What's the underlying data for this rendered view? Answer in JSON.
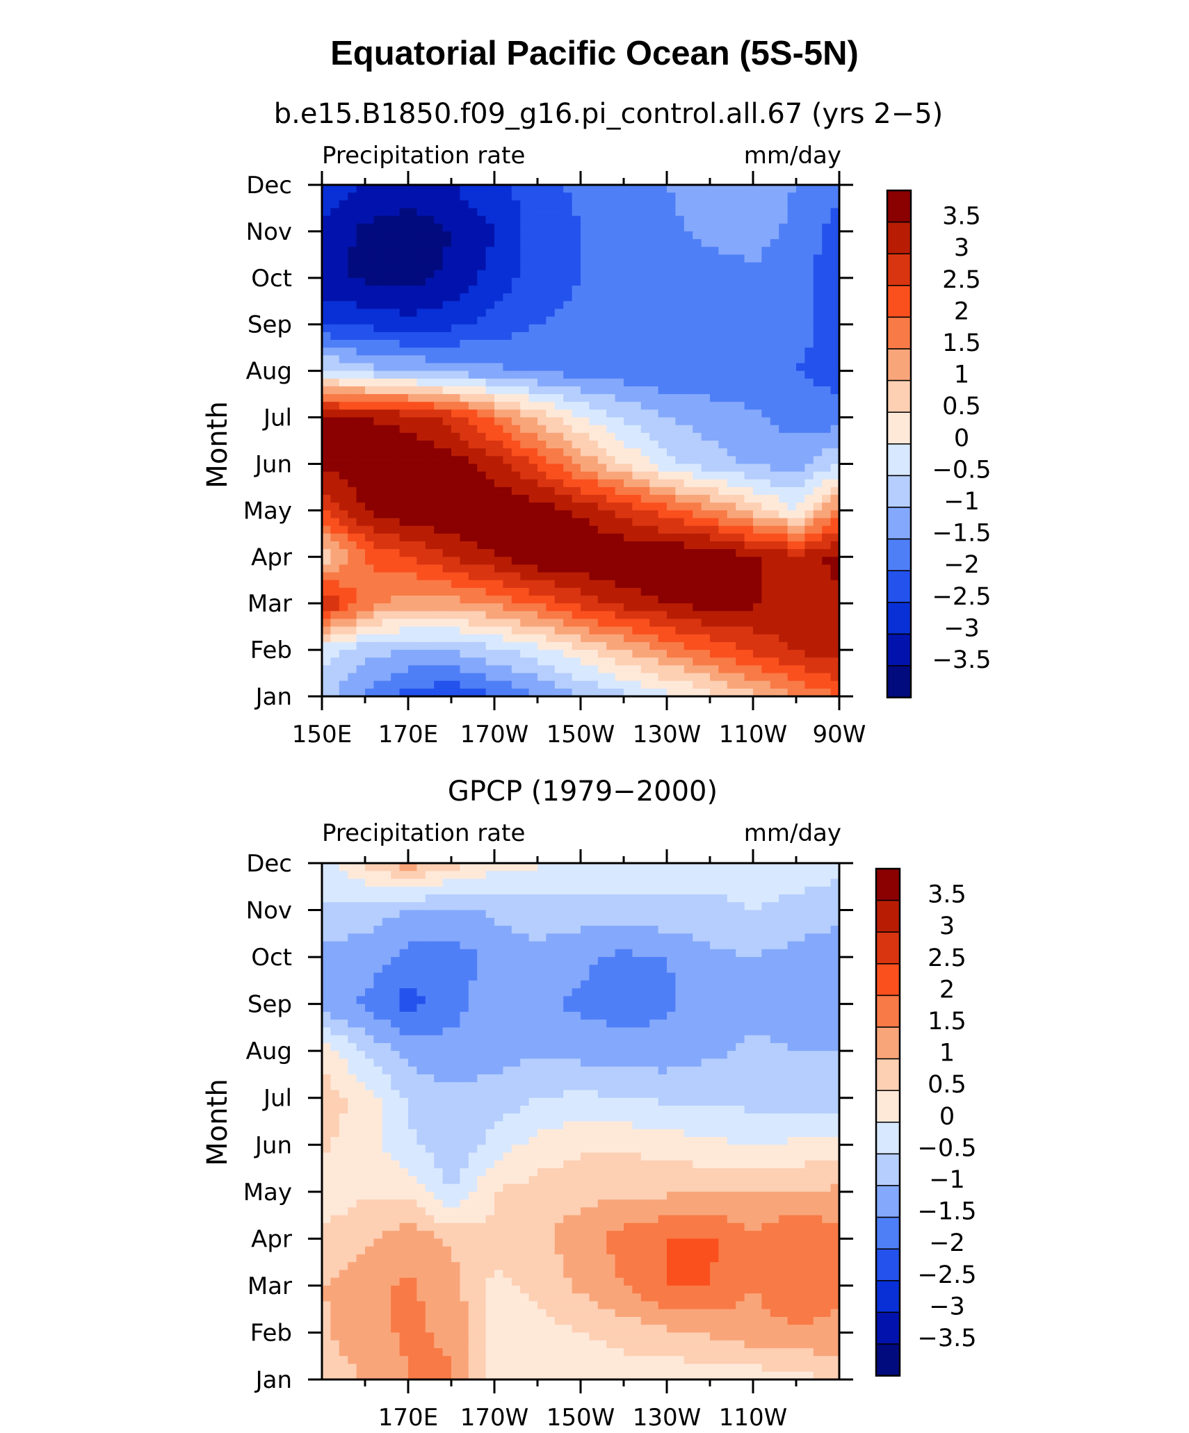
{
  "figure": {
    "title": "Equatorial Pacific Ocean (5S-5N)"
  },
  "colorbar": {
    "levels": [
      "3.5",
      "3",
      "2.5",
      "2",
      "1.5",
      "1",
      "0.5",
      "0",
      "−0.5",
      "−1",
      "−1.5",
      "−2",
      "−2.5",
      "−3",
      "−3.5"
    ],
    "colors": [
      "#8b0000",
      "#b81d04",
      "#d93510",
      "#fa501e",
      "#f87a46",
      "#f9a57a",
      "#fdcfb3",
      "#fee9d9",
      "#d8e8fe",
      "#b5cefd",
      "#84a8fb",
      "#4f7ff7",
      "#2352ec",
      "#0930d6",
      "#0213ad",
      "#020b7e"
    ]
  },
  "chart_data": [
    {
      "type": "heatmap",
      "subtitle": "b.e15.B1850.f09_g16.pi_control.all.67 (yrs 2−5)",
      "left_label": "Precipitation rate",
      "right_label": "mm/day",
      "ylabel": "Month",
      "x_ticks": [
        "150E",
        "170E",
        "170W",
        "150W",
        "130W",
        "110W",
        "90W"
      ],
      "x_range": [
        "150E",
        "90W"
      ],
      "y_ticks": [
        "Jan",
        "Feb",
        "Mar",
        "Apr",
        "May",
        "Jun",
        "Jul",
        "Aug",
        "Sep",
        "Oct",
        "Nov",
        "Dec"
      ],
      "units": "mm/day",
      "x_degrees": [
        150,
        160,
        170,
        180,
        190,
        200,
        210,
        220,
        230,
        240,
        250,
        260,
        270
      ],
      "values": [
        [
          -0.8,
          -1.6,
          -2.2,
          -2.4,
          -2.0,
          -1.5,
          -1.0,
          -0.6,
          -0.2,
          0.3,
          0.9,
          1.5,
          2.0
        ],
        [
          -0.3,
          -0.8,
          -1.0,
          -1.0,
          -0.6,
          -0.2,
          0.4,
          1.0,
          1.6,
          2.1,
          2.6,
          3.1,
          3.3
        ],
        [
          3.2,
          1.8,
          1.2,
          1.3,
          1.6,
          2.1,
          2.7,
          3.2,
          3.5,
          3.8,
          3.6,
          3.2,
          3.4
        ],
        [
          0.5,
          2.0,
          2.5,
          3.0,
          3.5,
          4.0,
          4.0,
          4.0,
          4.0,
          4.0,
          3.6,
          3.2,
          3.7
        ],
        [
          2.5,
          3.5,
          4.0,
          4.0,
          4.0,
          3.8,
          3.4,
          2.8,
          2.2,
          1.6,
          0.8,
          0.0,
          1.8
        ],
        [
          3.6,
          4.0,
          4.0,
          3.8,
          3.2,
          2.4,
          1.4,
          0.5,
          -0.3,
          -0.8,
          -1.1,
          -1.2,
          -0.5
        ],
        [
          3.5,
          3.5,
          3.3,
          2.8,
          1.8,
          0.8,
          0.0,
          -0.6,
          -1.0,
          -1.2,
          -1.4,
          -1.7,
          -1.8
        ],
        [
          -0.3,
          -0.8,
          -1.0,
          -1.2,
          -1.4,
          -1.6,
          -1.7,
          -1.8,
          -1.9,
          -1.9,
          -2.0,
          -2.0,
          -2.2
        ],
        [
          -2.5,
          -2.6,
          -2.8,
          -2.6,
          -2.3,
          -2.0,
          -1.9,
          -1.8,
          -1.8,
          -1.8,
          -1.7,
          -1.8,
          -2.3
        ],
        [
          -3.4,
          -3.6,
          -3.7,
          -3.4,
          -2.8,
          -2.2,
          -2.0,
          -1.9,
          -1.8,
          -1.7,
          -1.6,
          -1.8,
          -2.4
        ],
        [
          -3.2,
          -3.6,
          -3.8,
          -3.5,
          -3.0,
          -2.3,
          -2.0,
          -1.8,
          -1.6,
          -1.4,
          -1.3,
          -1.6,
          -2.2
        ],
        [
          -2.6,
          -3.0,
          -3.2,
          -3.0,
          -2.6,
          -2.2,
          -1.9,
          -1.7,
          -1.5,
          -1.3,
          -1.3,
          -1.5,
          -1.9
        ]
      ]
    },
    {
      "type": "heatmap",
      "subtitle": "GPCP (1979−2000)",
      "left_label": "Precipitation rate",
      "right_label": "mm/day",
      "ylabel": "Month",
      "x_ticks": [
        "170E",
        "170W",
        "150W",
        "130W",
        "110W"
      ],
      "x_range": [
        "150E",
        "90W"
      ],
      "y_ticks": [
        "Jan",
        "Feb",
        "Mar",
        "Apr",
        "May",
        "Jun",
        "Jul",
        "Aug",
        "Sep",
        "Oct",
        "Nov",
        "Dec"
      ],
      "units": "mm/day",
      "x_degrees": [
        150,
        160,
        170,
        180,
        190,
        200,
        210,
        220,
        230,
        240,
        250,
        260,
        270
      ],
      "values": [
        [
          0.8,
          1.0,
          1.5,
          1.6,
          0.3,
          0.2,
          0.2,
          0.2,
          0.2,
          0.1,
          0.2,
          0.3,
          0.6
        ],
        [
          0.9,
          1.3,
          1.6,
          1.4,
          0.4,
          0.3,
          0.5,
          0.7,
          0.9,
          1.1,
          1.3,
          1.4,
          1.4
        ],
        [
          1.0,
          1.3,
          1.6,
          1.2,
          0.4,
          0.6,
          1.1,
          1.5,
          2.0,
          2.0,
          1.5,
          2.0,
          1.6
        ],
        [
          0.6,
          0.9,
          1.3,
          0.9,
          0.6,
          0.9,
          1.3,
          1.7,
          2.0,
          2.1,
          1.6,
          2.0,
          1.7
        ],
        [
          0.2,
          0.4,
          0.4,
          -0.5,
          0.5,
          0.7,
          0.8,
          0.9,
          0.9,
          1.0,
          1.0,
          1.0,
          1.1
        ],
        [
          0.6,
          0.2,
          -0.4,
          -0.9,
          -0.3,
          0.2,
          0.4,
          0.4,
          0.3,
          0.1,
          0.0,
          0.1,
          0.2
        ],
        [
          0.8,
          0.3,
          -0.6,
          -0.9,
          -0.8,
          -0.5,
          -0.4,
          -0.5,
          -0.6,
          -0.6,
          -0.7,
          -0.8,
          -0.9
        ],
        [
          0.3,
          -0.6,
          -1.2,
          -1.3,
          -1.2,
          -1.1,
          -1.2,
          -1.3,
          -1.3,
          -1.1,
          -0.9,
          -1.0,
          -1.0
        ],
        [
          -1.3,
          -1.6,
          -2.2,
          -1.7,
          -1.2,
          -1.4,
          -1.6,
          -1.7,
          -1.6,
          -1.3,
          -1.1,
          -1.4,
          -1.5
        ],
        [
          -1.2,
          -1.2,
          -1.7,
          -1.8,
          -1.3,
          -1.1,
          -1.4,
          -1.6,
          -1.5,
          -1.1,
          -1.0,
          -1.2,
          -1.4
        ],
        [
          -0.6,
          -0.8,
          -1.0,
          -1.1,
          -0.9,
          -0.8,
          -0.7,
          -0.7,
          -0.6,
          -0.6,
          -0.5,
          -0.6,
          -0.8
        ],
        [
          -0.2,
          0.6,
          1.3,
          0.7,
          0.2,
          0.1,
          -0.2,
          -0.2,
          -0.3,
          -0.3,
          -0.3,
          -0.3,
          -0.3
        ]
      ]
    }
  ]
}
